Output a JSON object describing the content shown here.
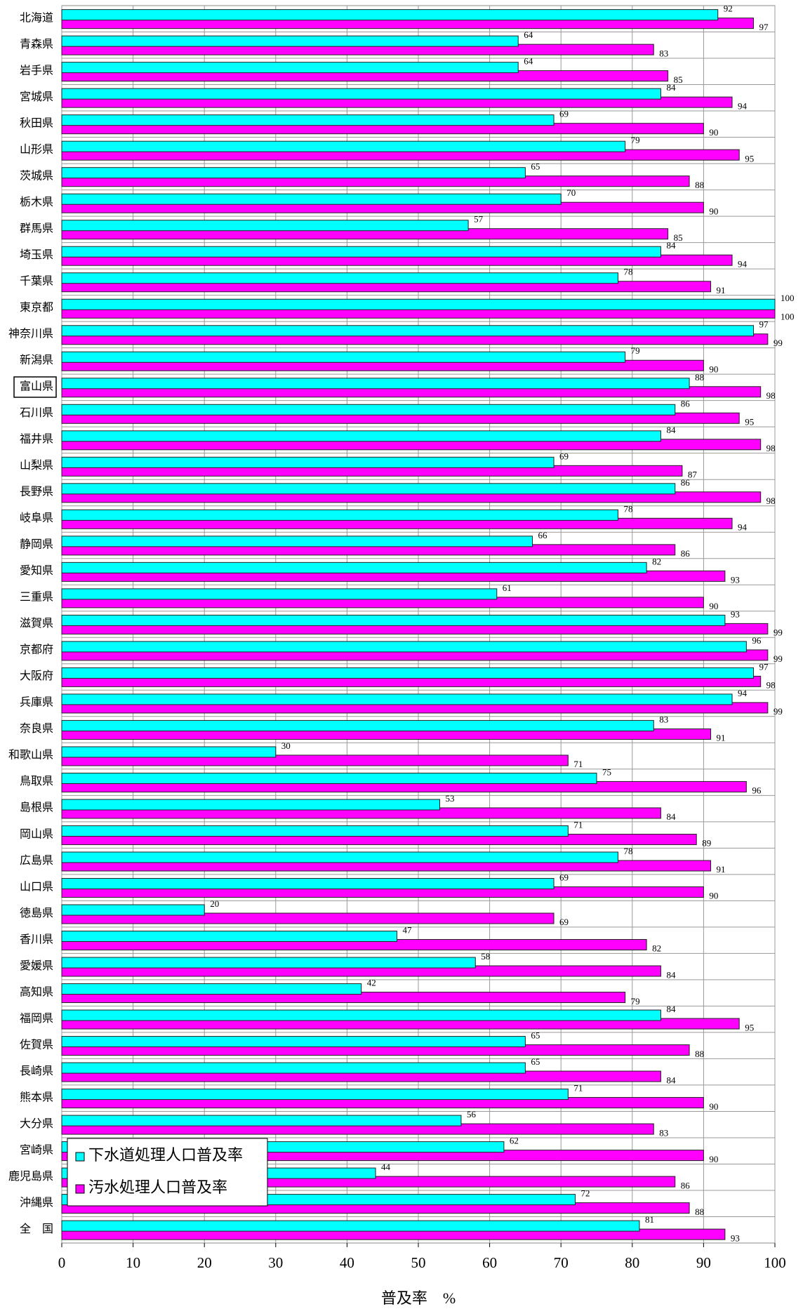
{
  "chart_data": {
    "type": "bar",
    "orientation": "horizontal",
    "x_label": "普及率　%",
    "categories": [
      "北海道",
      "青森県",
      "岩手県",
      "宮城県",
      "秋田県",
      "山形県",
      "茨城県",
      "栃木県",
      "群馬県",
      "埼玉県",
      "千葉県",
      "東京都",
      "神奈川県",
      "新潟県",
      "富山県",
      "石川県",
      "福井県",
      "山梨県",
      "長野県",
      "岐阜県",
      "静岡県",
      "愛知県",
      "三重県",
      "滋賀県",
      "京都府",
      "大阪府",
      "兵庫県",
      "奈良県",
      "和歌山県",
      "鳥取県",
      "島根県",
      "岡山県",
      "広島県",
      "山口県",
      "徳島県",
      "香川県",
      "愛媛県",
      "高知県",
      "福岡県",
      "佐賀県",
      "長崎県",
      "熊本県",
      "大分県",
      "宮崎県",
      "鹿児島県",
      "沖縄県",
      "全　国"
    ],
    "series": [
      {
        "name": "下水道処理人口普及率",
        "color": "#00ffff",
        "values": [
          92,
          64,
          64,
          84,
          69,
          79,
          65,
          70,
          57,
          84,
          78,
          100,
          97,
          79,
          88,
          86,
          84,
          69,
          86,
          78,
          66,
          82,
          61,
          93,
          96,
          97,
          94,
          83,
          30,
          75,
          53,
          71,
          78,
          69,
          20,
          47,
          58,
          42,
          84,
          65,
          65,
          71,
          56,
          62,
          44,
          72,
          81
        ]
      },
      {
        "name": "汚水処理人口普及率",
        "color": "#ff00ff",
        "values": [
          97,
          83,
          85,
          94,
          90,
          95,
          88,
          90,
          85,
          94,
          91,
          100,
          99,
          90,
          98,
          95,
          98,
          87,
          98,
          94,
          86,
          93,
          90,
          99,
          99,
          98,
          99,
          91,
          71,
          96,
          84,
          89,
          91,
          90,
          69,
          82,
          84,
          79,
          95,
          88,
          84,
          90,
          83,
          90,
          86,
          88,
          93
        ]
      }
    ],
    "xlim": [
      0,
      100
    ],
    "xticks": [
      0,
      10,
      20,
      30,
      40,
      50,
      60,
      70,
      80,
      90,
      100
    ],
    "grid": true,
    "legend": "lower left"
  }
}
